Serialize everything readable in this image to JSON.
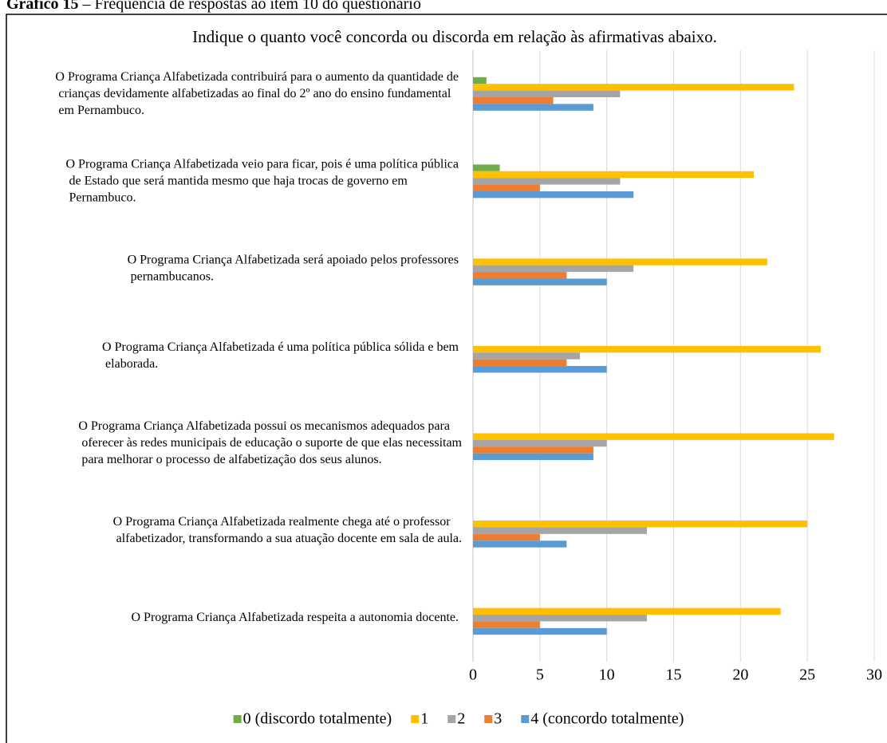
{
  "caption": {
    "label": "Gráfico 15",
    "text": " – Frequência de respostas ao item 10 do questionário"
  },
  "chart_data": {
    "type": "hbar",
    "title": "Indique o quanto você concorda ou discorda em relação às afirmativas abaixo.",
    "categories": [
      "O Programa Criança Alfabetizada contribuirá para o aumento da quantidade de crianças devidamente alfabetizadas ao final do 2º ano do ensino fundamental em Pernambuco.",
      "O Programa Criança Alfabetizada veio para ficar, pois é uma política pública de Estado que será mantida mesmo que haja trocas de governo em Pernambuco.",
      "O Programa Criança Alfabetizada será apoiado pelos professores pernambucanos.",
      "O Programa Criança Alfabetizada é uma política pública sólida e bem elaborada.",
      "O Programa Criança Alfabetizada possui os mecanismos adequados para oferecer às redes municipais de educação o suporte de que elas necessitam para melhorar o processo de alfabetização dos seus alunos.",
      "O Programa Criança Alfabetizada realmente chega até o professor alfabetizador, transformando a sua atuação docente em sala de aula.",
      "O Programa Criança Alfabetizada respeita a autonomia docente."
    ],
    "series": [
      {
        "name": "0 (discordo totalmente)",
        "color": "#70ad47",
        "values": [
          1,
          2,
          0,
          0,
          0,
          0,
          0
        ]
      },
      {
        "name": "1",
        "color": "#ffc000",
        "values": [
          24,
          21,
          22,
          26,
          27,
          25,
          23
        ]
      },
      {
        "name": "2",
        "color": "#a5a5a5",
        "values": [
          11,
          11,
          12,
          8,
          10,
          13,
          13
        ]
      },
      {
        "name": "3",
        "color": "#ed7d31",
        "values": [
          6,
          5,
          7,
          7,
          9,
          5,
          5
        ]
      },
      {
        "name": "4 (concordo totalmente)",
        "color": "#5b9bd5",
        "values": [
          9,
          12,
          10,
          10,
          9,
          7,
          10
        ]
      }
    ],
    "xlim": [
      0,
      30
    ],
    "xticks": [
      0,
      5,
      10,
      15,
      20,
      25,
      30
    ],
    "grid": true,
    "legend": "bottom"
  }
}
